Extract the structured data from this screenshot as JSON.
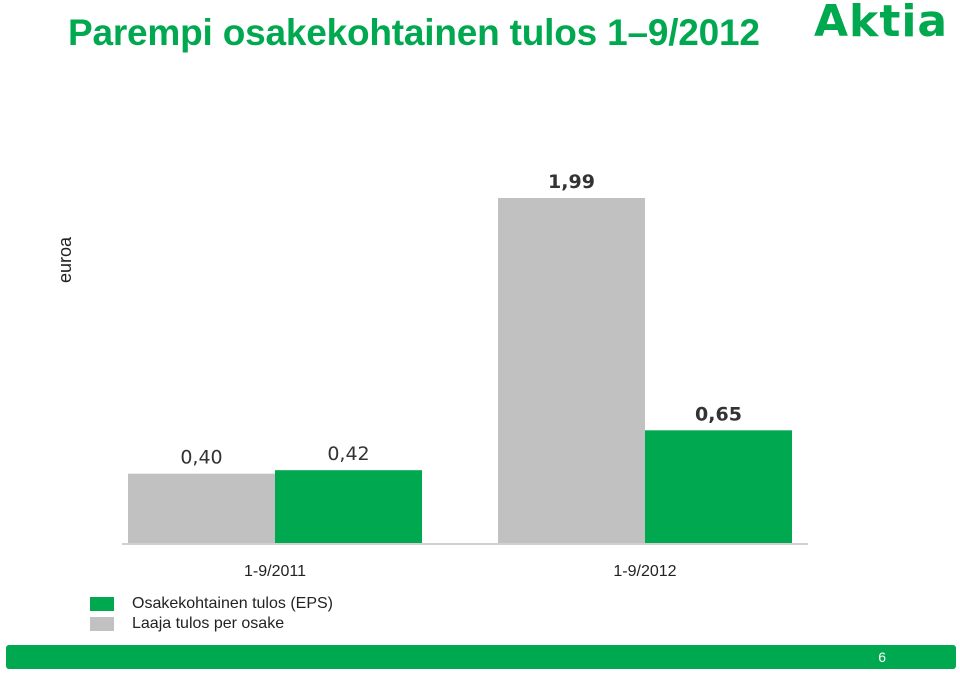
{
  "slide": {
    "title": "Parempi osakekohtainen tulos 1–9/2012",
    "logo_text": "Aktia",
    "page_number": "6"
  },
  "colors": {
    "brand_green": "#00a84f",
    "series_gray": "#c1c1c1"
  },
  "chart_data": {
    "type": "bar",
    "title": "",
    "xlabel": "",
    "ylabel": "euroa",
    "categories": [
      "1-9/2011",
      "1-9/2012"
    ],
    "series": [
      {
        "name": "Laaja tulos per osake",
        "color": "#c1c1c1",
        "values": [
          0.4,
          1.99
        ],
        "labels": [
          "0,40",
          "1,99"
        ]
      },
      {
        "name": "Osakekohtainen tulos (EPS)",
        "color": "#00a84f",
        "values": [
          0.42,
          0.65
        ],
        "labels": [
          "0,42",
          "0,65"
        ]
      }
    ],
    "ylim": [
      0,
      1.99
    ],
    "grid": false,
    "legend_position": "bottom-left"
  },
  "legend": [
    {
      "label": "Osakekohtainen tulos (EPS)",
      "color": "#00a84f"
    },
    {
      "label": "Laaja tulos per osake",
      "color": "#c1c1c1"
    }
  ]
}
